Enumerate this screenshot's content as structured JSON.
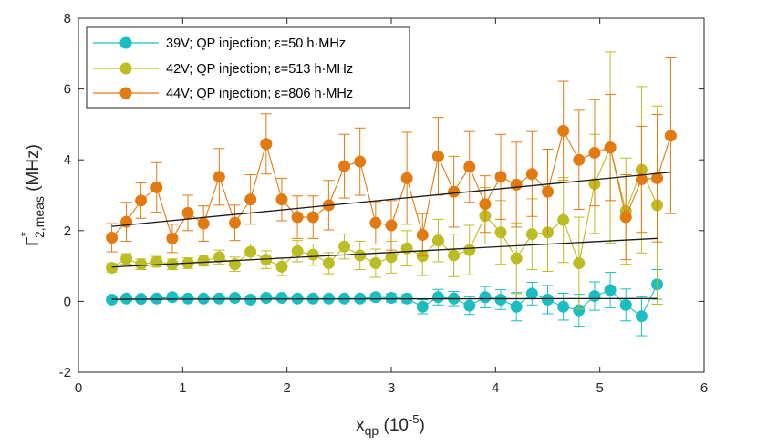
{
  "chart_data": {
    "type": "scatter",
    "title": "",
    "xlabel": {
      "main": "x",
      "sub": "qp",
      "rest": " (10",
      "sup": "-5",
      "end": ")"
    },
    "ylabel": {
      "main": "Γ",
      "sup": "*",
      "sub": "2,meas",
      "rest": " (MHz)"
    },
    "xlim": [
      0,
      6
    ],
    "ylim": [
      -2,
      8
    ],
    "xticks": [
      0,
      1,
      2,
      3,
      4,
      5,
      6
    ],
    "yticks": [
      -2,
      0,
      2,
      4,
      6,
      8
    ],
    "xtick_labels": [
      "0",
      "1",
      "2",
      "3",
      "4",
      "5",
      "6"
    ],
    "ytick_labels": [
      "-2",
      "0",
      "2",
      "4",
      "6",
      "8"
    ],
    "grid": false,
    "legend_position": "top-left",
    "x": [
      0.32,
      0.46,
      0.6,
      0.75,
      0.9,
      1.05,
      1.2,
      1.35,
      1.5,
      1.65,
      1.8,
      1.95,
      2.1,
      2.25,
      2.4,
      2.55,
      2.7,
      2.85,
      3.0,
      3.15,
      3.3,
      3.45,
      3.6,
      3.75,
      3.9,
      4.05,
      4.2,
      4.35,
      4.5,
      4.65,
      4.8,
      4.95,
      5.1,
      5.25,
      5.4,
      5.55,
      5.68
    ],
    "series": [
      {
        "name": "39V; QP injection; ε=50 h·MHz",
        "color": "#1ABEC0",
        "n": 36,
        "values": [
          0.05,
          0.08,
          0.07,
          0.08,
          0.12,
          0.08,
          0.08,
          0.08,
          0.1,
          0.05,
          0.1,
          0.1,
          0.08,
          0.08,
          0.08,
          0.08,
          0.08,
          0.12,
          0.1,
          0.08,
          -0.15,
          0.12,
          0.08,
          -0.12,
          0.12,
          0.05,
          -0.15,
          0.22,
          0.05,
          -0.15,
          -0.25,
          0.15,
          0.32,
          -0.1,
          -0.42,
          0.48
        ],
        "errors": [
          0.04,
          0.08,
          0.06,
          0.05,
          0.06,
          0.05,
          0.05,
          0.05,
          0.06,
          0.06,
          0.07,
          0.07,
          0.06,
          0.06,
          0.06,
          0.07,
          0.08,
          0.1,
          0.12,
          0.12,
          0.2,
          0.22,
          0.2,
          0.25,
          0.3,
          0.28,
          0.4,
          0.32,
          0.4,
          0.38,
          0.45,
          0.4,
          0.5,
          0.45,
          0.55,
          0.42
        ],
        "fit": {
          "x": [
            0.32,
            5.55
          ],
          "y": [
            0.06,
            0.08
          ]
        }
      },
      {
        "name": "42V; QP injection; ε=513 h·MHz",
        "color": "#BCBD22",
        "n": 36,
        "values": [
          0.95,
          1.2,
          1.05,
          1.12,
          1.05,
          1.08,
          1.15,
          1.25,
          1.05,
          1.4,
          1.18,
          0.98,
          1.42,
          1.32,
          1.08,
          1.55,
          1.3,
          1.08,
          1.25,
          1.5,
          1.28,
          1.72,
          1.3,
          1.45,
          2.42,
          1.95,
          1.22,
          1.9,
          1.95,
          2.3,
          1.08,
          3.32,
          4.35,
          2.55,
          3.72,
          2.72
        ],
        "errors": [
          0.12,
          0.15,
          0.15,
          0.15,
          0.15,
          0.15,
          0.15,
          0.2,
          0.2,
          0.22,
          0.25,
          0.25,
          0.3,
          0.3,
          0.3,
          0.35,
          0.4,
          0.4,
          0.45,
          0.5,
          0.55,
          0.6,
          0.6,
          0.7,
          0.8,
          0.9,
          1.0,
          1.0,
          1.1,
          1.2,
          1.3,
          1.4,
          2.7,
          1.5,
          2.35,
          2.8
        ],
        "fit": {
          "x": [
            0.32,
            5.55
          ],
          "y": [
            0.97,
            1.78
          ]
        }
      },
      {
        "name": "44V; QP injection; ε=806 h·MHz",
        "color": "#E37A0F",
        "n": 37,
        "values": [
          1.8,
          2.25,
          2.85,
          3.22,
          1.78,
          2.5,
          2.2,
          3.52,
          2.22,
          2.88,
          4.45,
          2.88,
          2.38,
          2.38,
          2.72,
          3.82,
          3.95,
          2.22,
          2.15,
          3.48,
          1.88,
          4.1,
          3.1,
          3.8,
          2.75,
          3.52,
          3.3,
          3.6,
          3.1,
          4.82,
          4.0,
          4.2,
          4.35,
          2.38,
          3.45,
          3.48,
          4.68
        ],
        "errors": [
          0.4,
          0.55,
          0.5,
          0.7,
          0.4,
          0.5,
          0.5,
          0.8,
          0.5,
          0.7,
          0.85,
          0.6,
          0.6,
          0.6,
          0.7,
          0.9,
          0.95,
          0.6,
          0.7,
          1.3,
          0.6,
          1.1,
          1.0,
          1.0,
          0.8,
          1.2,
          1.2,
          1.2,
          1.2,
          1.4,
          1.4,
          1.5,
          1.5,
          1.2,
          1.5,
          1.8,
          2.2
        ],
        "fit": {
          "x": [
            0.32,
            5.68
          ],
          "y": [
            2.12,
            3.65
          ]
        }
      }
    ]
  }
}
